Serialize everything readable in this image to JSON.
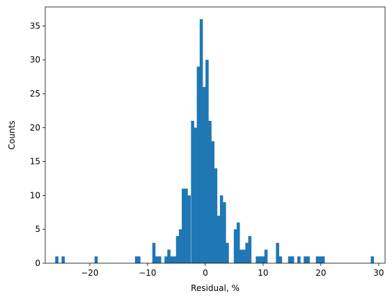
{
  "chart_data": {
    "type": "bar",
    "title": "",
    "xlabel": "Residual, %",
    "ylabel": "Counts",
    "xlim": [
      -27.7,
      31.1
    ],
    "ylim": [
      0,
      37.8
    ],
    "xticks": [
      -20,
      -10,
      0,
      10,
      20,
      30
    ],
    "yticks": [
      0,
      5,
      10,
      15,
      20,
      25,
      30,
      35
    ],
    "bin_width": 0.55,
    "bar_color": "#1f77b4",
    "grid": false,
    "bins": [
      {
        "x": -25.7,
        "count": 1
      },
      {
        "x": -24.6,
        "count": 1
      },
      {
        "x": -18.9,
        "count": 1
      },
      {
        "x": -11.9,
        "count": 1
      },
      {
        "x": -11.5,
        "count": 1
      },
      {
        "x": -8.9,
        "count": 3
      },
      {
        "x": -8.4,
        "count": 1
      },
      {
        "x": -7.9,
        "count": 1
      },
      {
        "x": -6.8,
        "count": 1
      },
      {
        "x": -6.3,
        "count": 2
      },
      {
        "x": -5.8,
        "count": 1
      },
      {
        "x": -5.3,
        "count": 1
      },
      {
        "x": -4.8,
        "count": 4
      },
      {
        "x": -4.3,
        "count": 5
      },
      {
        "x": -3.8,
        "count": 11
      },
      {
        "x": -3.3,
        "count": 11
      },
      {
        "x": -2.8,
        "count": 10
      },
      {
        "x": -2.2,
        "count": 21
      },
      {
        "x": -1.7,
        "count": 20
      },
      {
        "x": -1.2,
        "count": 29
      },
      {
        "x": -0.7,
        "count": 36
      },
      {
        "x": -0.2,
        "count": 26
      },
      {
        "x": 0.3,
        "count": 30
      },
      {
        "x": 0.8,
        "count": 21
      },
      {
        "x": 1.3,
        "count": 18
      },
      {
        "x": 1.8,
        "count": 14
      },
      {
        "x": 2.3,
        "count": 7
      },
      {
        "x": 2.8,
        "count": 10
      },
      {
        "x": 3.3,
        "count": 9
      },
      {
        "x": 3.8,
        "count": 3
      },
      {
        "x": 5.2,
        "count": 5
      },
      {
        "x": 5.7,
        "count": 6
      },
      {
        "x": 6.2,
        "count": 2
      },
      {
        "x": 6.7,
        "count": 2
      },
      {
        "x": 7.2,
        "count": 3
      },
      {
        "x": 7.7,
        "count": 4
      },
      {
        "x": 9.0,
        "count": 1
      },
      {
        "x": 9.5,
        "count": 1
      },
      {
        "x": 10.0,
        "count": 1
      },
      {
        "x": 10.5,
        "count": 2
      },
      {
        "x": 12.5,
        "count": 3
      },
      {
        "x": 13.0,
        "count": 1
      },
      {
        "x": 14.6,
        "count": 1
      },
      {
        "x": 15.1,
        "count": 1
      },
      {
        "x": 16.2,
        "count": 1
      },
      {
        "x": 17.3,
        "count": 1
      },
      {
        "x": 17.8,
        "count": 1
      },
      {
        "x": 19.4,
        "count": 1
      },
      {
        "x": 19.9,
        "count": 1
      },
      {
        "x": 20.4,
        "count": 1
      },
      {
        "x": 28.9,
        "count": 1
      }
    ]
  }
}
